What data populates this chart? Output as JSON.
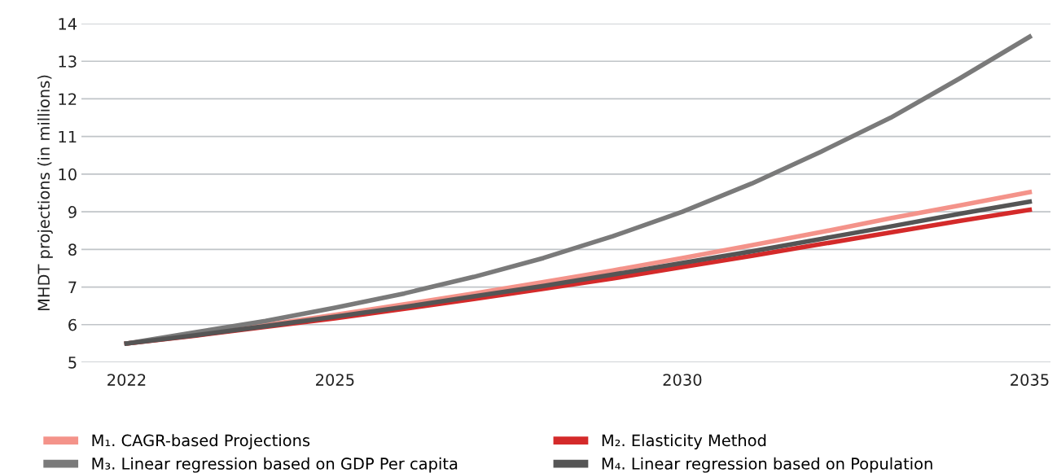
{
  "chart_data": {
    "type": "line",
    "ylabel": "MHDT projections (in millions)",
    "x": [
      2022,
      2023,
      2024,
      2025,
      2026,
      2027,
      2028,
      2029,
      2030,
      2031,
      2032,
      2033,
      2034,
      2035
    ],
    "xlim": [
      2021.35,
      2035.3
    ],
    "xticks": [
      2022,
      2025,
      2030,
      2035
    ],
    "ylim": [
      5,
      14
    ],
    "yticks": [
      5,
      6,
      7,
      8,
      9,
      10,
      11,
      12,
      13,
      14
    ],
    "grid": "y",
    "legend": "bottom",
    "marker": "none",
    "line_style": "solid",
    "series": [
      {
        "name": "M₁. CAGR-based Projections",
        "color": "#f4938a",
        "values": [
          5.5,
          5.74,
          5.99,
          6.26,
          6.54,
          6.83,
          7.13,
          7.44,
          7.77,
          8.11,
          8.46,
          8.83,
          9.17,
          9.52
        ]
      },
      {
        "name": "M₂. Elasticity Method",
        "color": "#d42a2a",
        "values": [
          5.5,
          5.71,
          5.94,
          6.17,
          6.42,
          6.68,
          6.95,
          7.23,
          7.53,
          7.83,
          8.14,
          8.45,
          8.76,
          9.05
        ]
      },
      {
        "name": "M₃. Linear regression based on GDP Per capita",
        "color": "#7a7a7a",
        "values": [
          5.5,
          5.8,
          6.1,
          6.45,
          6.83,
          7.27,
          7.77,
          8.35,
          9.0,
          9.75,
          10.6,
          11.5,
          12.55,
          13.65
        ]
      },
      {
        "name": "M₄. Linear regression based on Population",
        "color": "#555555",
        "values": [
          5.5,
          5.72,
          5.96,
          6.21,
          6.47,
          6.75,
          7.03,
          7.33,
          7.64,
          7.95,
          8.28,
          8.61,
          8.95,
          9.27
        ]
      }
    ]
  }
}
